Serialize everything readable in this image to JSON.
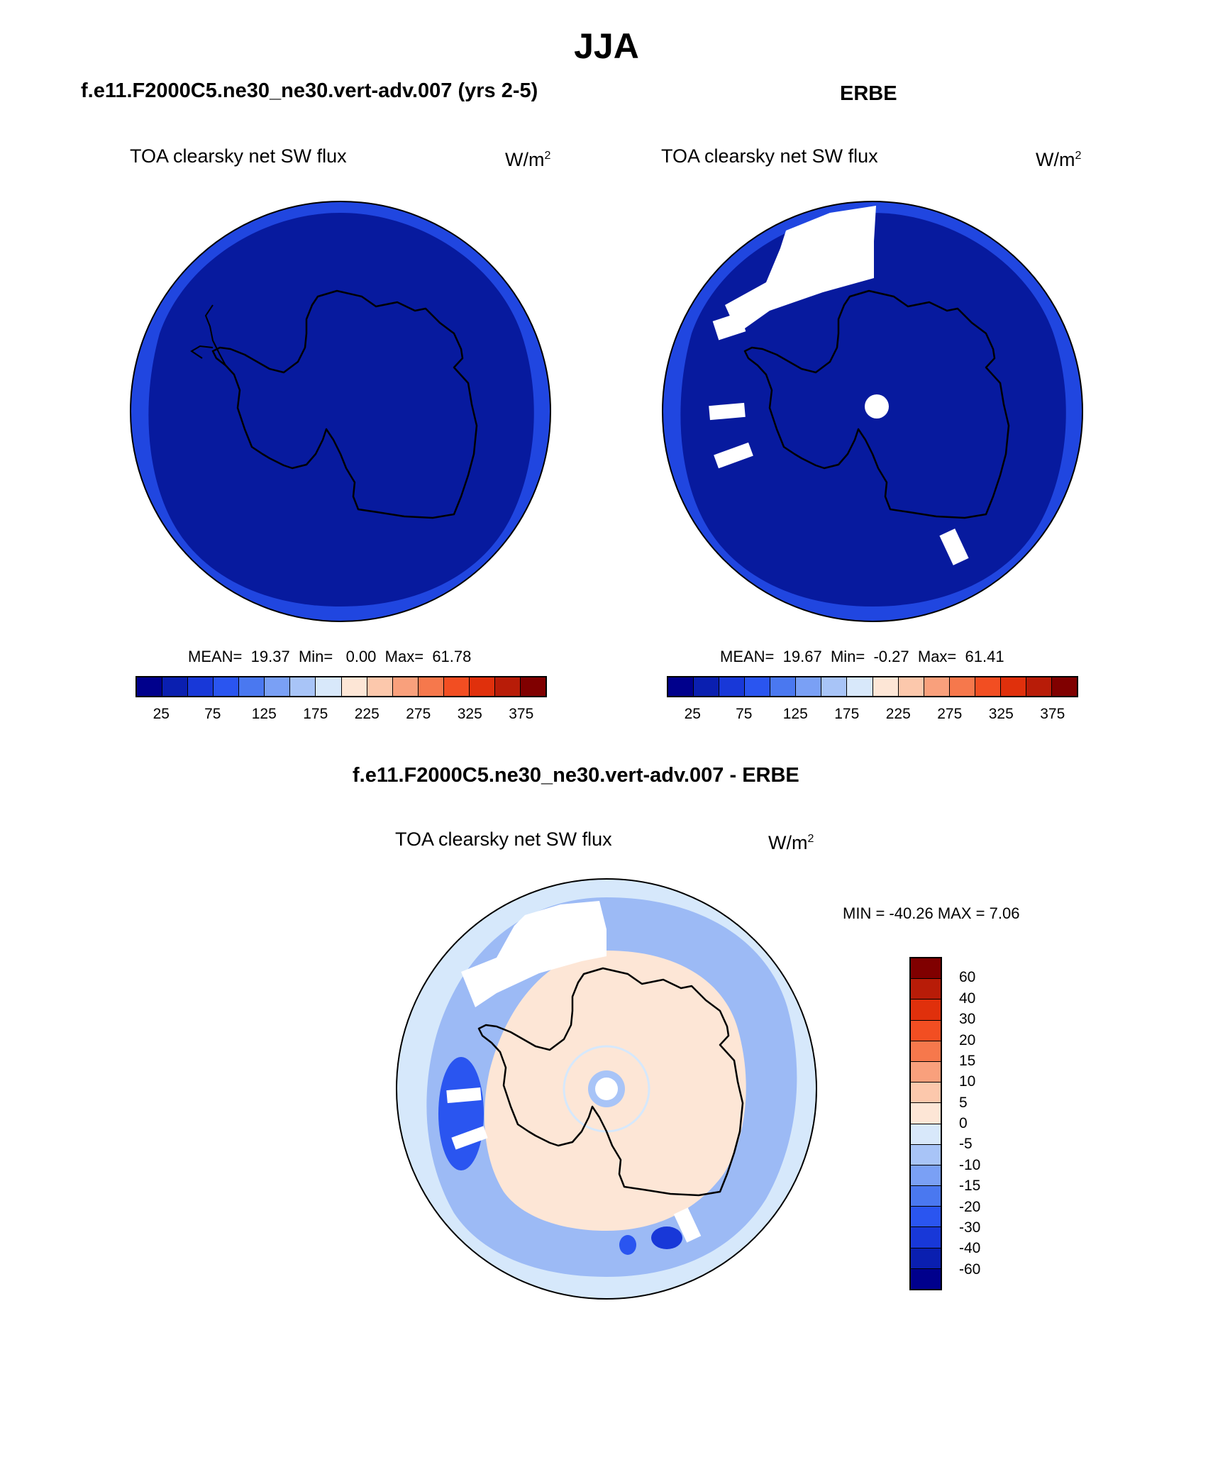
{
  "page_title": "JJA",
  "panels": {
    "model": {
      "header": "f.e11.F2000C5.ne30_ne30.vert-adv.007 (yrs 2-5)",
      "subtitle": "TOA clearsky net SW flux",
      "units": "W/m",
      "units_exp": "2",
      "stats": {
        "mean_label": "MEAN=",
        "mean": "19.37",
        "min_label": "Min=",
        "min": "0.00",
        "max_label": "Max=",
        "max": "61.78"
      }
    },
    "obs": {
      "header": "ERBE",
      "subtitle": "TOA clearsky net SW flux",
      "units": "W/m",
      "units_exp": "2",
      "stats": {
        "mean_label": "MEAN=",
        "mean": "19.67",
        "min_label": "Min=",
        "min": "-0.27",
        "max_label": "Max=",
        "max": "61.41"
      }
    },
    "diff": {
      "header": "f.e11.F2000C5.ne30_ne30.vert-adv.007 - ERBE",
      "subtitle": "TOA clearsky net SW flux",
      "units": "W/m",
      "units_exp": "2",
      "minmax": "MIN = -40.26 MAX =   7.06"
    }
  },
  "abs_colorbar": {
    "colors": [
      "#00008c",
      "#0a1fb0",
      "#1838d8",
      "#2a55f0",
      "#4a78f0",
      "#7aa0f5",
      "#a8c4f7",
      "#d8e8fa",
      "#fde6d6",
      "#fcc8ac",
      "#f9a07c",
      "#f6784c",
      "#f24e22",
      "#e0300c",
      "#b81c08",
      "#800000"
    ],
    "labels": [
      "25",
      "75",
      "125",
      "175",
      "225",
      "275",
      "325",
      "375"
    ]
  },
  "diff_colorbar": {
    "colors": [
      "#800000",
      "#b81c08",
      "#e0300c",
      "#f24e22",
      "#f6784c",
      "#f9a07c",
      "#fcc8ac",
      "#fde6d6",
      "#d8e8fa",
      "#a8c4f7",
      "#7aa0f5",
      "#4a78f0",
      "#2a55f0",
      "#1838d8",
      "#0a1fb0",
      "#00008c"
    ],
    "labels": [
      "60",
      "40",
      "30",
      "20",
      "15",
      "10",
      "5",
      "0",
      "-5",
      "-10",
      "-15",
      "-20",
      "-30",
      "-40",
      "-60"
    ]
  },
  "map_colors": {
    "outer_ring": "#2046e0",
    "inner_disk": "#071a9e",
    "diff_bg": "#d6e8fb",
    "diff_band": "#9cbaf5",
    "diff_interior": "#fde6d6",
    "coast": "#000000",
    "missing": "#ffffff"
  }
}
